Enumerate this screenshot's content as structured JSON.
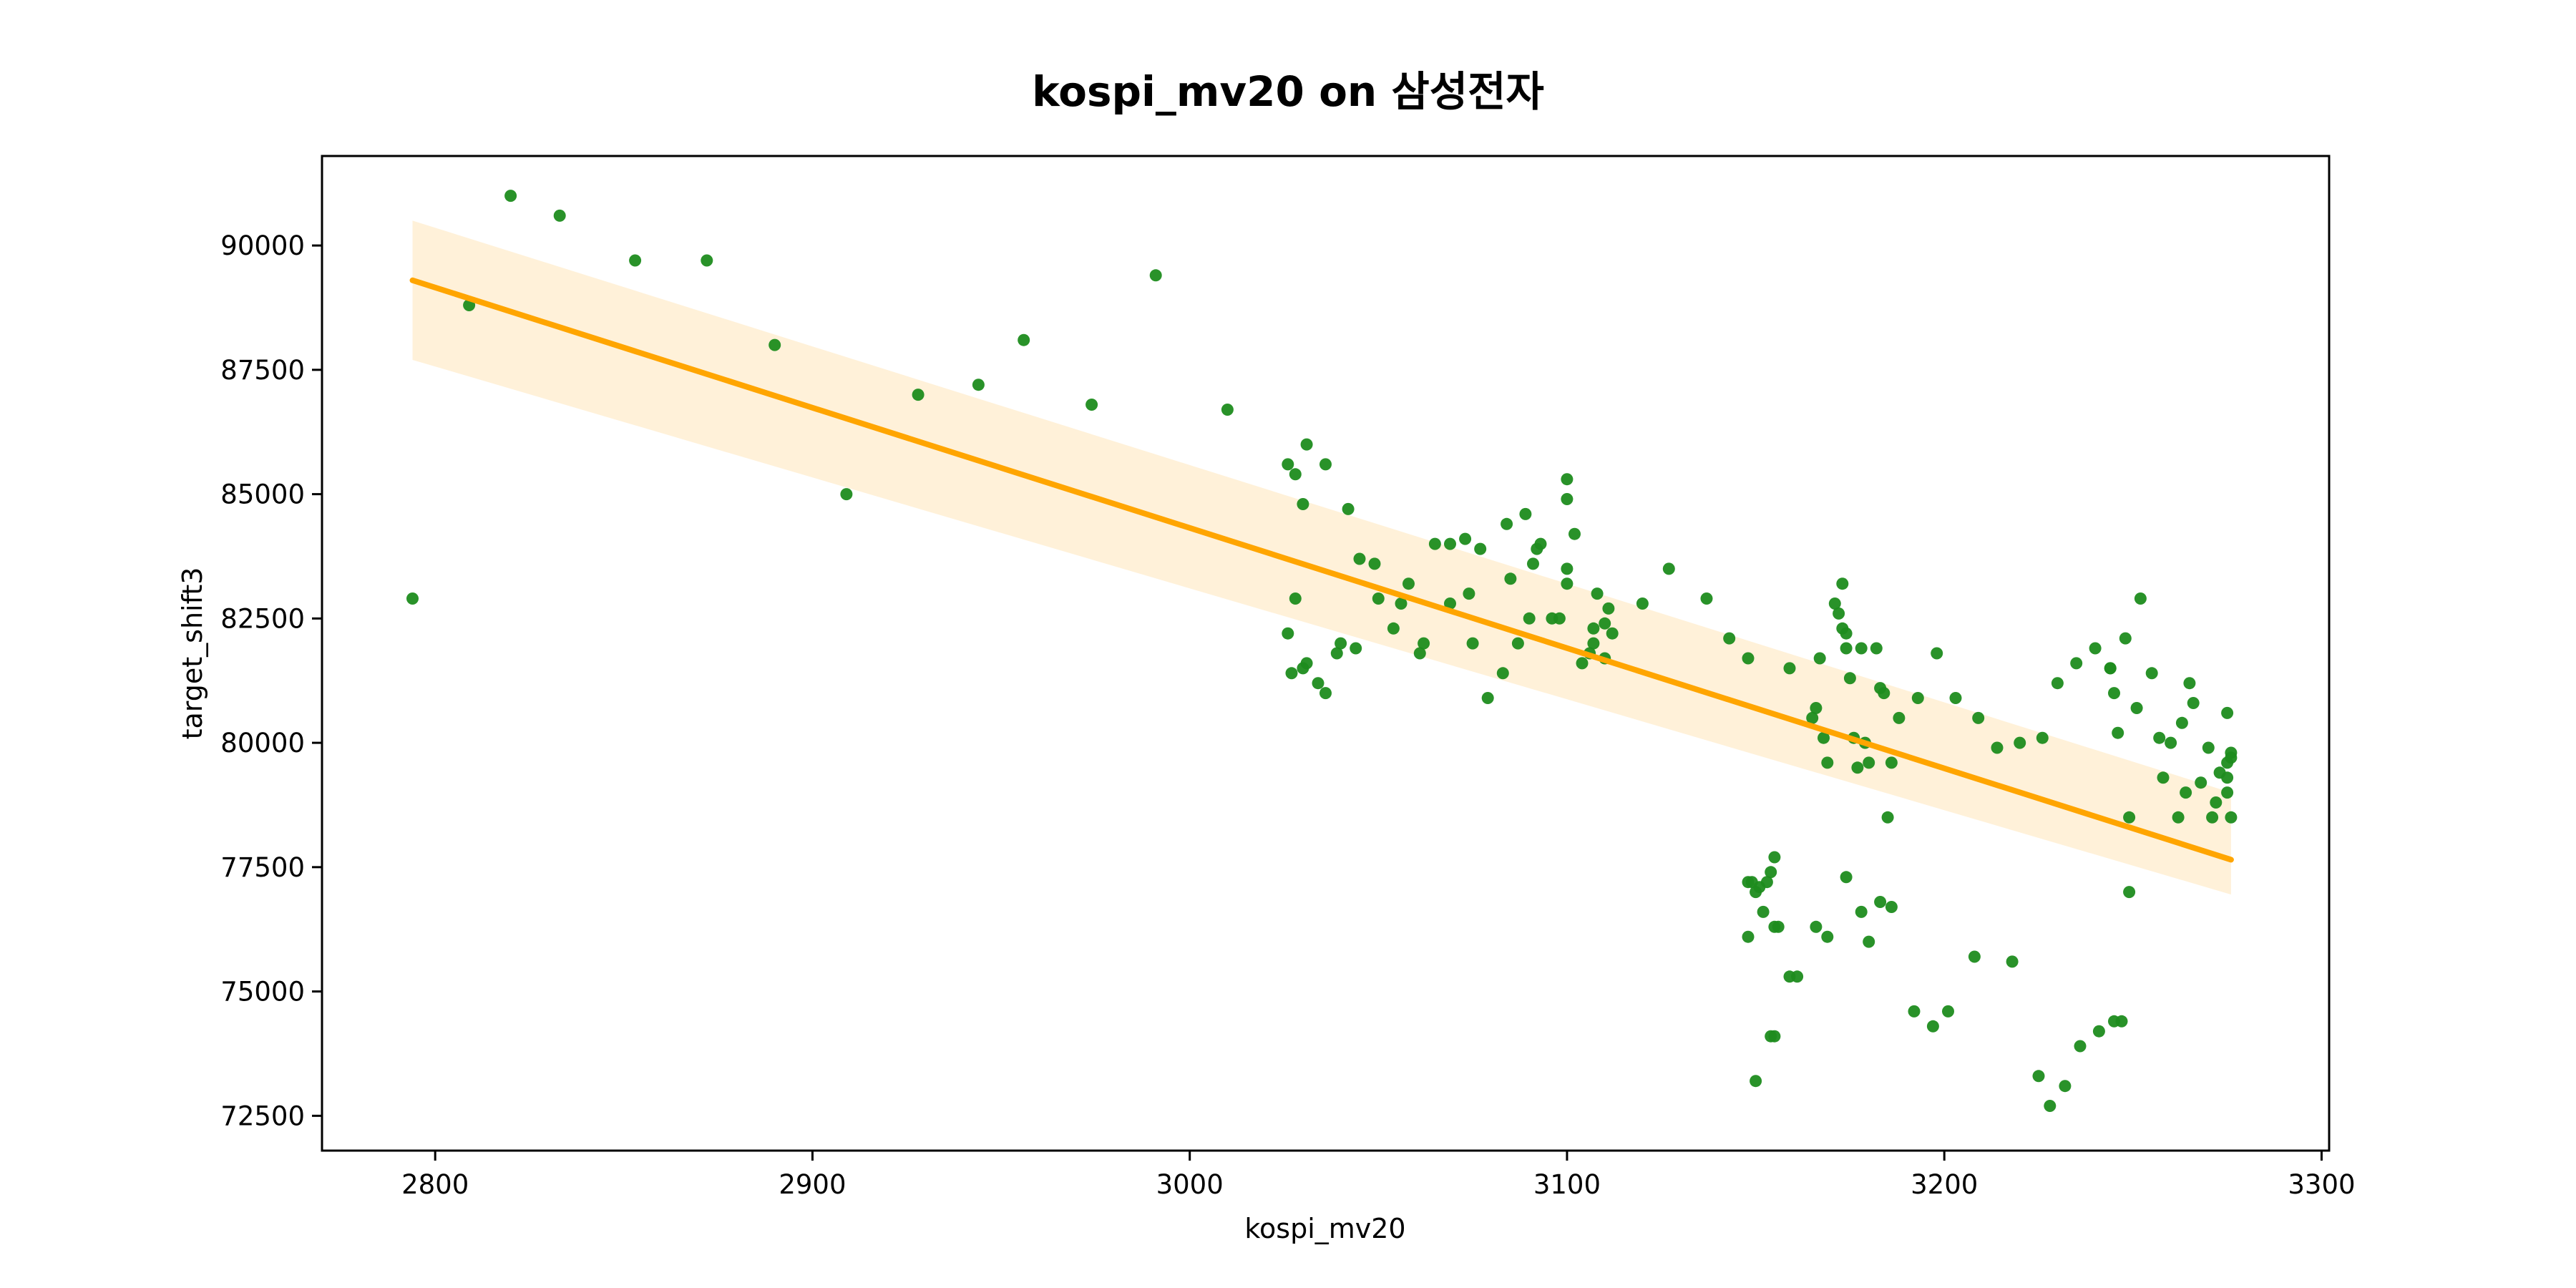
{
  "chart_data": {
    "type": "scatter",
    "title": "kospi_mv20 on 삼성전자",
    "xlabel": "kospi_mv20",
    "ylabel": "target_shift3",
    "xlim": [
      2770,
      3302
    ],
    "ylim": [
      71800,
      91800
    ],
    "xticks": [
      2800,
      2900,
      3000,
      3100,
      3200,
      3300
    ],
    "yticks": [
      72500,
      75000,
      77500,
      80000,
      82500,
      85000,
      87500,
      90000
    ],
    "grid": false,
    "legend": "none",
    "point_color": "#1e8c1e",
    "line_color": "#ffa500",
    "band_color": "#ffefd5",
    "series": [
      {
        "points": [
          [
            2794,
            82900
          ],
          [
            2809,
            88800
          ],
          [
            2820,
            91000
          ],
          [
            2833,
            90600
          ],
          [
            2853,
            89700
          ],
          [
            2872,
            89700
          ],
          [
            2890,
            88000
          ],
          [
            2909,
            85000
          ],
          [
            2928,
            87000
          ],
          [
            2944,
            87200
          ],
          [
            2956,
            88100
          ],
          [
            2974,
            86800
          ],
          [
            2991,
            89400
          ],
          [
            3010,
            86700
          ],
          [
            3026,
            85600
          ],
          [
            3028,
            85400
          ],
          [
            3031,
            86000
          ],
          [
            3036,
            85600
          ],
          [
            3042,
            84700
          ],
          [
            3030,
            84800
          ],
          [
            3026,
            82200
          ],
          [
            3028,
            82900
          ],
          [
            3027,
            81400
          ],
          [
            3030,
            81500
          ],
          [
            3031,
            81600
          ],
          [
            3034,
            81200
          ],
          [
            3036,
            81000
          ],
          [
            3039,
            81800
          ],
          [
            3040,
            82000
          ],
          [
            3044,
            81900
          ],
          [
            3045,
            83700
          ],
          [
            3049,
            83600
          ],
          [
            3050,
            82900
          ],
          [
            3054,
            82300
          ],
          [
            3056,
            82800
          ],
          [
            3058,
            83200
          ],
          [
            3061,
            81800
          ],
          [
            3062,
            82000
          ],
          [
            3065,
            84000
          ],
          [
            3069,
            84000
          ],
          [
            3073,
            84100
          ],
          [
            3077,
            83900
          ],
          [
            3079,
            80900
          ],
          [
            3069,
            82800
          ],
          [
            3074,
            83000
          ],
          [
            3075,
            82000
          ],
          [
            3083,
            81400
          ],
          [
            3084,
            84400
          ],
          [
            3085,
            83300
          ],
          [
            3087,
            82000
          ],
          [
            3089,
            84600
          ],
          [
            3090,
            82500
          ],
          [
            3091,
            83600
          ],
          [
            3092,
            83900
          ],
          [
            3093,
            84000
          ],
          [
            3096,
            82500
          ],
          [
            3098,
            82500
          ],
          [
            3100,
            85300
          ],
          [
            3100,
            84900
          ],
          [
            3100,
            83500
          ],
          [
            3100,
            83200
          ],
          [
            3102,
            84200
          ],
          [
            3104,
            81600
          ],
          [
            3106,
            81800
          ],
          [
            3107,
            82000
          ],
          [
            3107,
            82300
          ],
          [
            3108,
            83000
          ],
          [
            3110,
            82400
          ],
          [
            3110,
            81700
          ],
          [
            3111,
            82700
          ],
          [
            3112,
            82200
          ],
          [
            3120,
            82800
          ],
          [
            3127,
            83500
          ],
          [
            3137,
            82900
          ],
          [
            3143,
            82100
          ],
          [
            3148,
            81700
          ],
          [
            3159,
            81500
          ],
          [
            3165,
            80500
          ],
          [
            3166,
            80700
          ],
          [
            3167,
            81700
          ],
          [
            3168,
            80100
          ],
          [
            3169,
            79600
          ],
          [
            3171,
            82800
          ],
          [
            3172,
            82600
          ],
          [
            3173,
            83200
          ],
          [
            3173,
            82300
          ],
          [
            3174,
            82200
          ],
          [
            3174,
            81900
          ],
          [
            3175,
            81300
          ],
          [
            3176,
            80100
          ],
          [
            3177,
            79500
          ],
          [
            3178,
            81900
          ],
          [
            3179,
            80000
          ],
          [
            3180,
            79600
          ],
          [
            3182,
            81900
          ],
          [
            3183,
            81100
          ],
          [
            3184,
            81000
          ],
          [
            3185,
            78500
          ],
          [
            3186,
            79600
          ],
          [
            3188,
            80500
          ],
          [
            3193,
            80900
          ],
          [
            3198,
            81800
          ],
          [
            3203,
            80900
          ],
          [
            3209,
            80500
          ],
          [
            3214,
            79900
          ],
          [
            3220,
            80000
          ],
          [
            3226,
            80100
          ],
          [
            3230,
            81200
          ],
          [
            3235,
            81600
          ],
          [
            3240,
            81900
          ],
          [
            3244,
            81500
          ],
          [
            3244,
            81500
          ],
          [
            3245,
            81000
          ],
          [
            3246,
            80200
          ],
          [
            3248,
            82100
          ],
          [
            3249,
            78500
          ],
          [
            3249,
            77000
          ],
          [
            3251,
            80700
          ],
          [
            3252,
            82900
          ],
          [
            3255,
            81400
          ],
          [
            3257,
            80100
          ],
          [
            3258,
            79300
          ],
          [
            3260,
            80000
          ],
          [
            3262,
            78500
          ],
          [
            3263,
            80400
          ],
          [
            3264,
            79000
          ],
          [
            3265,
            81200
          ],
          [
            3266,
            80800
          ],
          [
            3268,
            79200
          ],
          [
            3270,
            79900
          ],
          [
            3271,
            78500
          ],
          [
            3272,
            78800
          ],
          [
            3273,
            79400
          ],
          [
            3275,
            80600
          ],
          [
            3275,
            79600
          ],
          [
            3275,
            79000
          ],
          [
            3275,
            79300
          ],
          [
            3276,
            79800
          ],
          [
            3276,
            79700
          ],
          [
            3276,
            78500
          ],
          [
            3148,
            77200
          ],
          [
            3149,
            77200
          ],
          [
            3150,
            77000
          ],
          [
            3151,
            77100
          ],
          [
            3152,
            76600
          ],
          [
            3153,
            77200
          ],
          [
            3154,
            77400
          ],
          [
            3155,
            77700
          ],
          [
            3155,
            76300
          ],
          [
            3156,
            76300
          ],
          [
            3148,
            76100
          ],
          [
            3150,
            73200
          ],
          [
            3154,
            74100
          ],
          [
            3155,
            74100
          ],
          [
            3159,
            75300
          ],
          [
            3161,
            75300
          ],
          [
            3166,
            76300
          ],
          [
            3169,
            76100
          ],
          [
            3174,
            77300
          ],
          [
            3178,
            76600
          ],
          [
            3180,
            76000
          ],
          [
            3183,
            76800
          ],
          [
            3186,
            76700
          ],
          [
            3192,
            74600
          ],
          [
            3197,
            74300
          ],
          [
            3201,
            74600
          ],
          [
            3208,
            75700
          ],
          [
            3218,
            75600
          ],
          [
            3225,
            73300
          ],
          [
            3228,
            72700
          ],
          [
            3232,
            73100
          ],
          [
            3236,
            73900
          ],
          [
            3241,
            74200
          ],
          [
            3245,
            74400
          ],
          [
            3247,
            74400
          ]
        ]
      }
    ],
    "regression": {
      "x": [
        2794,
        3276
      ],
      "y": [
        89300,
        77650
      ],
      "ci_upper": [
        90500,
        79000
      ],
      "ci_lower": [
        87700,
        76950
      ]
    }
  }
}
